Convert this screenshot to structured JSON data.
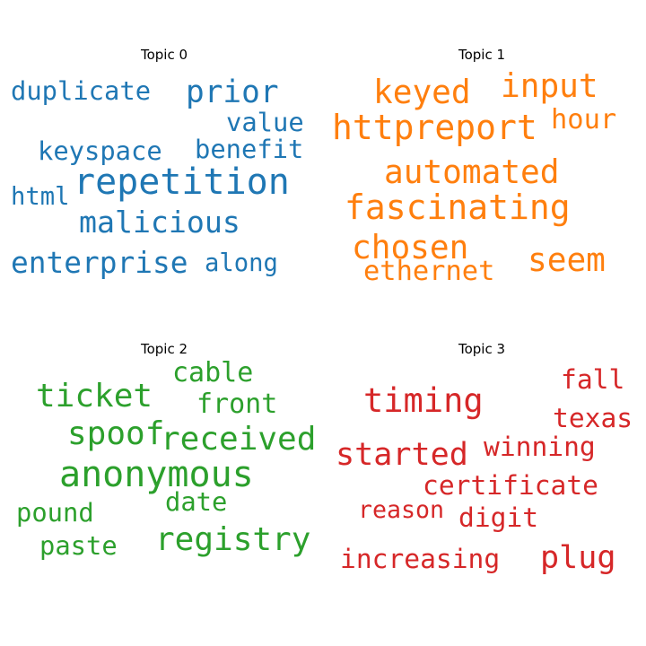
{
  "chart_data": [
    {
      "type": "wordcloud",
      "title": "Topic 0",
      "color": "#1f77b4",
      "words": [
        {
          "text": "repetition",
          "weight": 1.0
        },
        {
          "text": "prior",
          "weight": 0.86
        },
        {
          "text": "malicious",
          "weight": 0.83
        },
        {
          "text": "enterprise",
          "weight": 0.82
        },
        {
          "text": "duplicate",
          "weight": 0.72
        },
        {
          "text": "keyspace",
          "weight": 0.72
        },
        {
          "text": "benefit",
          "weight": 0.72
        },
        {
          "text": "value",
          "weight": 0.72
        },
        {
          "text": "along",
          "weight": 0.68
        },
        {
          "text": "html",
          "weight": 0.68
        }
      ]
    },
    {
      "type": "wordcloud",
      "title": "Topic 1",
      "color": "#ff7f0e",
      "words": [
        {
          "text": "fascinating",
          "weight": 1.0
        },
        {
          "text": "httpreport",
          "weight": 1.0
        },
        {
          "text": "automated",
          "weight": 0.95
        },
        {
          "text": "keyed",
          "weight": 0.95
        },
        {
          "text": "chosen",
          "weight": 0.95
        },
        {
          "text": "input",
          "weight": 0.95
        },
        {
          "text": "seem",
          "weight": 0.95
        },
        {
          "text": "hour",
          "weight": 0.8
        },
        {
          "text": "ethernet",
          "weight": 0.8
        }
      ]
    },
    {
      "type": "wordcloud",
      "title": "Topic 2",
      "color": "#2ca02c",
      "words": [
        {
          "text": "anonymous",
          "weight": 1.0
        },
        {
          "text": "registry",
          "weight": 0.9
        },
        {
          "text": "received",
          "weight": 0.9
        },
        {
          "text": "spoof",
          "weight": 0.9
        },
        {
          "text": "ticket",
          "weight": 0.9
        },
        {
          "text": "front",
          "weight": 0.75
        },
        {
          "text": "cable",
          "weight": 0.75
        },
        {
          "text": "date",
          "weight": 0.72
        },
        {
          "text": "pound",
          "weight": 0.72
        },
        {
          "text": "paste",
          "weight": 0.72
        }
      ]
    },
    {
      "type": "wordcloud",
      "title": "Topic 3",
      "color": "#d62728",
      "words": [
        {
          "text": "timing",
          "weight": 1.0
        },
        {
          "text": "started",
          "weight": 0.95
        },
        {
          "text": "plug",
          "weight": 0.95
        },
        {
          "text": "certificate",
          "weight": 0.8
        },
        {
          "text": "winning",
          "weight": 0.8
        },
        {
          "text": "digit",
          "weight": 0.8
        },
        {
          "text": "fall",
          "weight": 0.8
        },
        {
          "text": "texas",
          "weight": 0.8
        },
        {
          "text": "increasing",
          "weight": 0.8
        },
        {
          "text": "reason",
          "weight": 0.72
        }
      ]
    }
  ]
}
